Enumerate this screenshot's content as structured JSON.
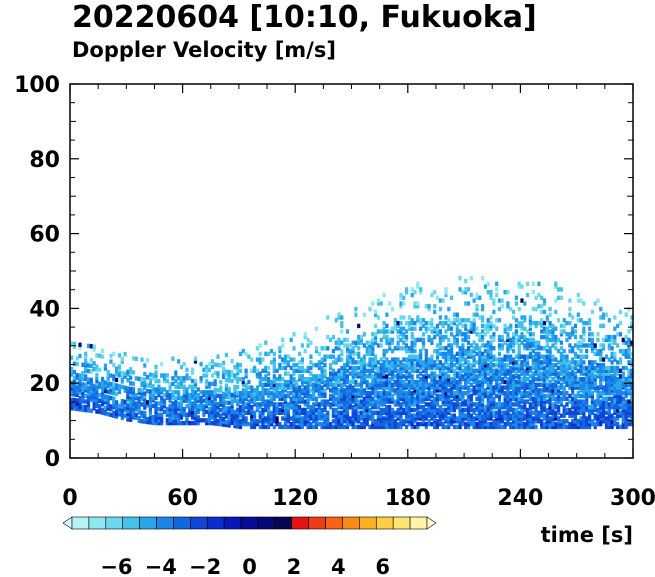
{
  "chart_data": {
    "type": "heatmap",
    "title": "20220604 [10:10, Fukuoka]",
    "subtitle": "Doppler Velocity [m/s]",
    "xlabel": "time [s]",
    "ylabel": "",
    "xlim": [
      0,
      300
    ],
    "ylim": [
      0,
      100
    ],
    "x_ticks": [
      0,
      60,
      120,
      180,
      240,
      300
    ],
    "y_ticks": [
      0,
      20,
      40,
      60,
      80,
      100
    ],
    "grid": false,
    "colorbar": {
      "range": [
        -8,
        8
      ],
      "ticks": [
        -6,
        -4,
        -2,
        0,
        2,
        4,
        6
      ],
      "tick_labels": [
        "−6",
        "−4",
        "−2",
        "0",
        "2",
        "4",
        "6"
      ],
      "colors": [
        "#d6fbfb",
        "#b4f3f6",
        "#8fe8f0",
        "#6bd8ec",
        "#45c2ea",
        "#28a6ea",
        "#1a87e8",
        "#1466e0",
        "#0f46d8",
        "#0a2ecb",
        "#0718b8",
        "#050c98",
        "#040878",
        "#060650",
        "#e41414",
        "#ee3c14",
        "#f46414",
        "#f88c14",
        "#fbb01c",
        "#fcd040",
        "#fde670",
        "#fff4a8",
        "#fffbd6"
      ]
    },
    "echo_envelope": {
      "x": [
        0,
        15,
        30,
        45,
        60,
        75,
        90,
        105,
        120,
        135,
        150,
        165,
        180,
        195,
        210,
        225,
        240,
        255,
        270,
        285,
        300
      ],
      "bottom": [
        13,
        12,
        10,
        9,
        9,
        9,
        8,
        8,
        8,
        8,
        8,
        8,
        8,
        8,
        8,
        8,
        8,
        8,
        8,
        8,
        8
      ],
      "top": [
        32,
        29,
        28,
        27,
        27,
        27,
        28,
        31,
        33,
        37,
        40,
        43,
        46,
        47,
        49,
        47,
        47,
        47,
        44,
        41,
        40
      ],
      "core_velocity_ms": -2.5
    }
  }
}
